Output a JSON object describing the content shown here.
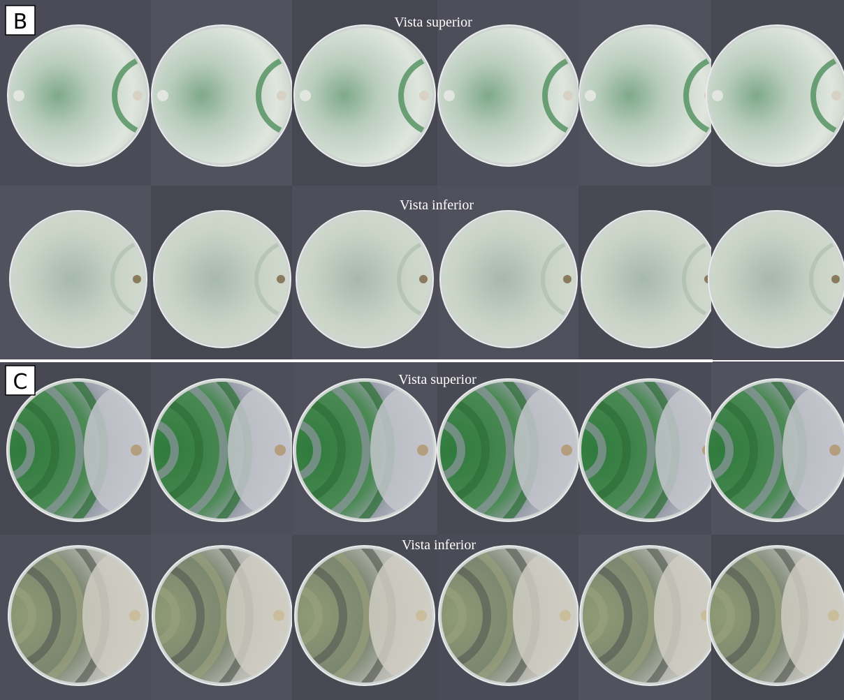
{
  "panels": [
    {
      "label": "B",
      "rows": [
        {
          "caption": "Vista superior"
        },
        {
          "caption": "Vista inferior"
        }
      ]
    },
    {
      "label": "C",
      "rows": [
        {
          "caption": "Vista superior"
        },
        {
          "caption": "Vista inferior"
        }
      ]
    }
  ]
}
